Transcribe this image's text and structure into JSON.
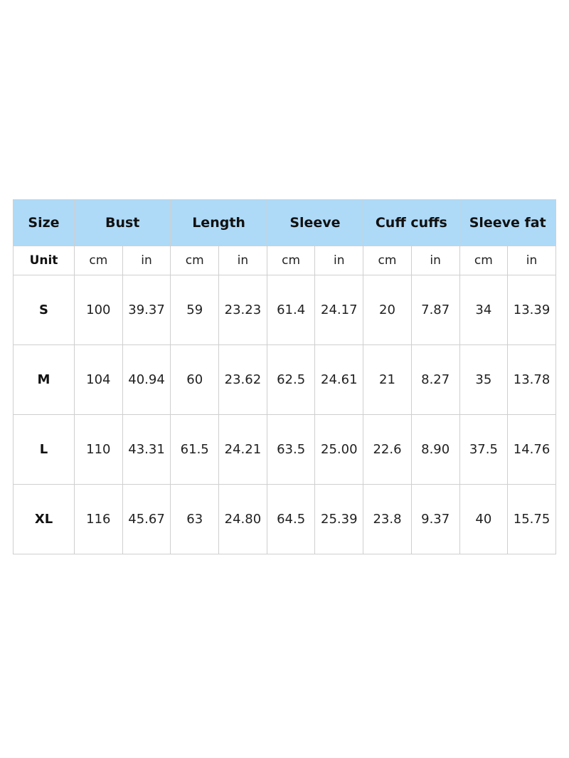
{
  "table": {
    "header": [
      "Size",
      "Bust",
      "Length",
      "Sleeve",
      "Cuff cuffs",
      "Sleeve fat"
    ],
    "units": [
      "Unit",
      "cm",
      "in",
      "cm",
      "in",
      "cm",
      "in",
      "cm",
      "in",
      "cm",
      "in"
    ],
    "rows": [
      [
        "S",
        "100",
        "39.37",
        "59",
        "23.23",
        "61.4",
        "24.17",
        "20",
        "7.87",
        "34",
        "13.39"
      ],
      [
        "M",
        "104",
        "40.94",
        "60",
        "23.62",
        "62.5",
        "24.61",
        "21",
        "8.27",
        "35",
        "13.78"
      ],
      [
        "L",
        "110",
        "43.31",
        "61.5",
        "24.21",
        "63.5",
        "25.00",
        "22.6",
        "8.90",
        "37.5",
        "14.76"
      ],
      [
        "XL",
        "116",
        "45.67",
        "63",
        "24.80",
        "64.5",
        "25.39",
        "23.8",
        "9.37",
        "40",
        "15.75"
      ]
    ]
  }
}
